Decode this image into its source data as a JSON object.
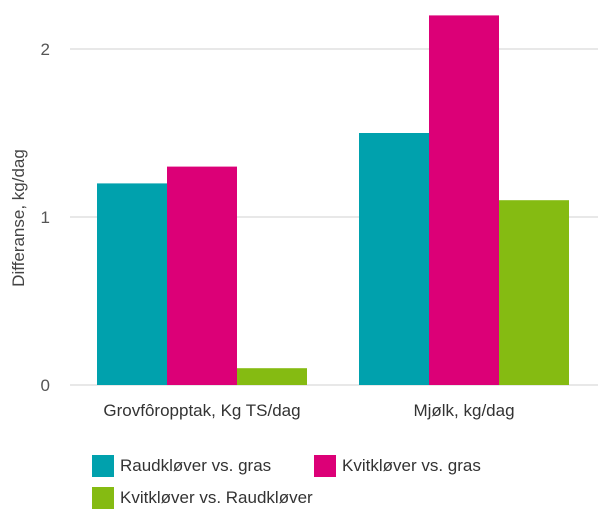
{
  "chart_data": {
    "type": "bar",
    "title": "",
    "xlabel": "",
    "ylabel": "Differanse, kg/dag",
    "ylim": [
      0,
      2.2
    ],
    "yticks": [
      "0",
      "1",
      "2"
    ],
    "grid": true,
    "legend_position": "bottom",
    "categories": [
      "Grovfôropptak, Kg TS/dag",
      "Mjølk, kg/dag"
    ],
    "series": [
      {
        "name": "Raudkløver vs. gras",
        "color": "#00a1ad",
        "values": [
          1.2,
          1.5
        ]
      },
      {
        "name": "Kvitkløver vs. gras",
        "color": "#dc0077",
        "values": [
          1.3,
          2.2
        ]
      },
      {
        "name": "Kvitkløver vs. Raudkløver",
        "color": "#85bb12",
        "values": [
          0.1,
          1.1
        ]
      }
    ]
  }
}
